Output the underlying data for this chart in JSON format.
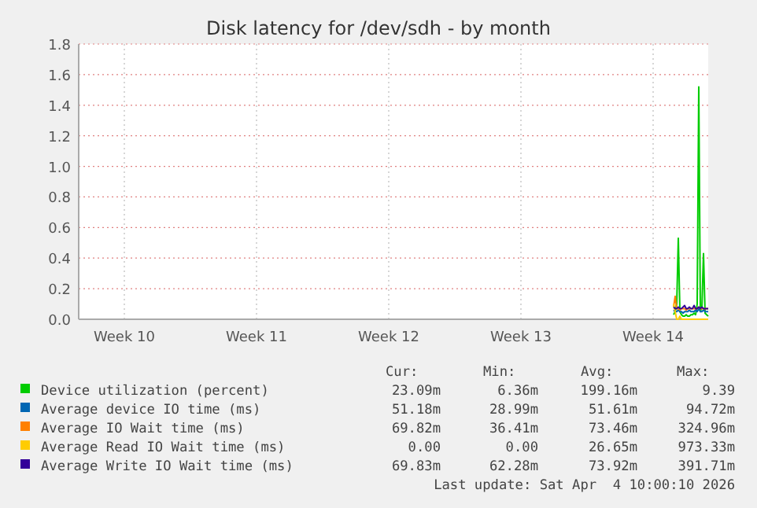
{
  "chart_data": {
    "type": "line",
    "title": "Disk latency for /dev/sdh - by month",
    "x": [
      "2026-04-02T14:00",
      "2026-04-02T16:00",
      "2026-04-02T18:00",
      "2026-04-02T20:00",
      "2026-04-02T22:00",
      "2026-04-03T00:00",
      "2026-04-03T02:00",
      "2026-04-03T04:00",
      "2026-04-03T06:00",
      "2026-04-03T08:00",
      "2026-04-03T10:00",
      "2026-04-03T12:00",
      "2026-04-03T14:00",
      "2026-04-03T16:00",
      "2026-04-03T18:00",
      "2026-04-03T20:00",
      "2026-04-03T22:00",
      "2026-04-04T00:00",
      "2026-04-04T02:00",
      "2026-04-04T04:00",
      "2026-04-04T06:00",
      "2026-04-04T08:00",
      "2026-04-04T10:00"
    ],
    "series": [
      {
        "name": "Device utilization (percent)",
        "color": "#00cc00",
        "values": [
          0.03,
          0.05,
          0.1,
          0.53,
          0.05,
          0.03,
          0.02,
          0.02,
          0.03,
          0.02,
          0.02,
          0.03,
          0.03,
          0.04,
          0.03,
          0.1,
          1.52,
          0.05,
          0.08,
          0.43,
          0.04,
          0.03,
          0.02
        ]
      },
      {
        "name": "Average device IO time (ms)",
        "color": "#0066b3",
        "values": [
          0.06,
          0.05,
          0.05,
          0.06,
          0.05,
          0.05,
          0.04,
          0.05,
          0.05,
          0.05,
          0.06,
          0.05,
          0.05,
          0.05,
          0.06,
          0.05,
          0.07,
          0.05,
          0.05,
          0.06,
          0.05,
          0.05,
          0.05
        ]
      },
      {
        "name": "Average IO Wait time (ms)",
        "color": "#ff8000",
        "values": [
          0.08,
          0.15,
          0.07,
          0.07,
          0.06,
          0.07,
          0.07,
          0.07,
          0.06,
          0.07,
          0.07,
          0.07,
          0.07,
          0.07,
          0.07,
          0.07,
          0.08,
          0.07,
          0.07,
          0.07,
          0.07,
          0.07,
          0.07
        ]
      },
      {
        "name": "Average Read IO Wait time (ms)",
        "color": "#ffcc00",
        "values": [
          0.1,
          0.05,
          0.0,
          0.0,
          0.02,
          0.0,
          0.0,
          0.0,
          0.0,
          0.0,
          0.0,
          0.0,
          0.0,
          0.0,
          0.0,
          0.0,
          0.0,
          0.0,
          0.0,
          0.0,
          0.0,
          0.0,
          0.0
        ]
      },
      {
        "name": "Average Write IO Wait time (ms)",
        "color": "#330099",
        "values": [
          0.08,
          0.07,
          0.07,
          0.08,
          0.07,
          0.07,
          0.08,
          0.09,
          0.07,
          0.07,
          0.08,
          0.07,
          0.07,
          0.09,
          0.07,
          0.07,
          0.08,
          0.07,
          0.08,
          0.07,
          0.07,
          0.07,
          0.07
        ]
      }
    ],
    "xlim": [
      "2026-03-02T02:00",
      "2026-04-04T10:00"
    ],
    "xticks": [
      {
        "value": "2026-03-04T12:00",
        "label": "Week 10"
      },
      {
        "value": "2026-03-11T12:00",
        "label": "Week 11"
      },
      {
        "value": "2026-03-18T12:00",
        "label": "Week 12"
      },
      {
        "value": "2026-03-25T12:00",
        "label": "Week 13"
      },
      {
        "value": "2026-04-01T12:00",
        "label": "Week 14"
      }
    ],
    "ylim": [
      0,
      1.8
    ],
    "yticks": [
      {
        "value": 0,
        "label": "0.0"
      },
      {
        "value": 0.2,
        "label": "0.2"
      },
      {
        "value": 0.4,
        "label": "0.4"
      },
      {
        "value": 0.6,
        "label": "0.6"
      },
      {
        "value": 0.8,
        "label": "0.8"
      },
      {
        "value": 1,
        "label": "1.0"
      },
      {
        "value": 1.2,
        "label": "1.2"
      },
      {
        "value": 1.4,
        "label": "1.4"
      },
      {
        "value": 1.6,
        "label": "1.6"
      },
      {
        "value": 1.8,
        "label": "1.8"
      }
    ],
    "grid": true,
    "legend": "bottom",
    "line_style": "solid",
    "annotations": [
      "Cur:",
      "Min:",
      "Avg:",
      "Max:",
      "23.09m",
      "6.36m",
      "199.16m",
      "9.39",
      "51.18m",
      "28.99m",
      "51.61m",
      "94.72m",
      "69.82m",
      "36.41m",
      "73.46m",
      "324.96m",
      "0.00",
      "0.00",
      "26.65m",
      "973.33m",
      "69.83m",
      "62.28m",
      "73.92m",
      "391.71m",
      "Last update: Sat Apr  4 10:00:10 2026"
    ]
  }
}
